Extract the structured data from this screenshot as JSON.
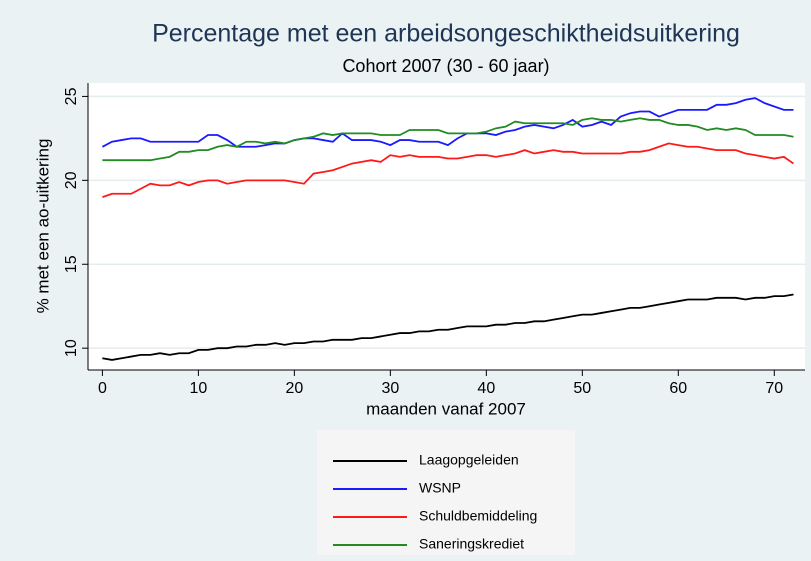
{
  "chart_data": {
    "type": "line",
    "title": "Percentage met een arbeidsongeschiktheidsuitkering",
    "subtitle": "Cohort 2007 (30 - 60 jaar)",
    "x_label": "maanden vanaf 2007",
    "y_label": "% met een ao-uitkering",
    "x": [
      0,
      1,
      2,
      3,
      4,
      5,
      6,
      7,
      8,
      9,
      10,
      11,
      12,
      13,
      14,
      15,
      16,
      17,
      18,
      19,
      20,
      21,
      22,
      23,
      24,
      25,
      26,
      27,
      28,
      29,
      30,
      31,
      32,
      33,
      34,
      35,
      36,
      37,
      38,
      39,
      40,
      41,
      42,
      43,
      44,
      45,
      46,
      47,
      48,
      49,
      50,
      51,
      52,
      53,
      54,
      55,
      56,
      57,
      58,
      59,
      60,
      61,
      62,
      63,
      64,
      65,
      66,
      67,
      68,
      69,
      70,
      71,
      72
    ],
    "series": [
      {
        "name": "Laagopgeleiden",
        "color": "#000000",
        "values": [
          9.4,
          9.3,
          9.4,
          9.5,
          9.6,
          9.6,
          9.7,
          9.6,
          9.7,
          9.7,
          9.9,
          9.9,
          10.0,
          10.0,
          10.1,
          10.1,
          10.2,
          10.2,
          10.3,
          10.2,
          10.3,
          10.3,
          10.4,
          10.4,
          10.5,
          10.5,
          10.5,
          10.6,
          10.6,
          10.7,
          10.8,
          10.9,
          10.9,
          11.0,
          11.0,
          11.1,
          11.1,
          11.2,
          11.3,
          11.3,
          11.3,
          11.4,
          11.4,
          11.5,
          11.5,
          11.6,
          11.6,
          11.7,
          11.8,
          11.9,
          12.0,
          12.0,
          12.1,
          12.2,
          12.3,
          12.4,
          12.4,
          12.5,
          12.6,
          12.7,
          12.8,
          12.9,
          12.9,
          12.9,
          13.0,
          13.0,
          13.0,
          12.9,
          13.0,
          13.0,
          13.1,
          13.1,
          13.2
        ]
      },
      {
        "name": "WSNP",
        "color": "#1a1aff",
        "values": [
          22.0,
          22.3,
          22.4,
          22.5,
          22.5,
          22.3,
          22.3,
          22.3,
          22.3,
          22.3,
          22.3,
          22.7,
          22.7,
          22.4,
          22.0,
          22.0,
          22.0,
          22.1,
          22.2,
          22.2,
          22.4,
          22.5,
          22.5,
          22.4,
          22.3,
          22.8,
          22.4,
          22.4,
          22.4,
          22.3,
          22.1,
          22.4,
          22.4,
          22.3,
          22.3,
          22.3,
          22.1,
          22.5,
          22.8,
          22.8,
          22.8,
          22.7,
          22.9,
          23.0,
          23.2,
          23.3,
          23.2,
          23.1,
          23.3,
          23.6,
          23.2,
          23.3,
          23.5,
          23.3,
          23.8,
          24.0,
          24.1,
          24.1,
          23.8,
          24.0,
          24.2,
          24.2,
          24.2,
          24.2,
          24.5,
          24.5,
          24.6,
          24.8,
          24.9,
          24.6,
          24.4,
          24.2,
          24.2
        ]
      },
      {
        "name": "Schuldbemiddeling",
        "color": "#ff1a1a",
        "values": [
          19.0,
          19.2,
          19.2,
          19.2,
          19.5,
          19.8,
          19.7,
          19.7,
          19.9,
          19.7,
          19.9,
          20.0,
          20.0,
          19.8,
          19.9,
          20.0,
          20.0,
          20.0,
          20.0,
          20.0,
          19.9,
          19.8,
          20.4,
          20.5,
          20.6,
          20.8,
          21.0,
          21.1,
          21.2,
          21.1,
          21.5,
          21.4,
          21.5,
          21.4,
          21.4,
          21.4,
          21.3,
          21.3,
          21.4,
          21.5,
          21.5,
          21.4,
          21.5,
          21.6,
          21.8,
          21.6,
          21.7,
          21.8,
          21.7,
          21.7,
          21.6,
          21.6,
          21.6,
          21.6,
          21.6,
          21.7,
          21.7,
          21.8,
          22.0,
          22.2,
          22.1,
          22.0,
          22.0,
          21.9,
          21.8,
          21.8,
          21.8,
          21.6,
          21.5,
          21.4,
          21.3,
          21.4,
          21.0
        ]
      },
      {
        "name": "Saneringskrediet",
        "color": "#228b22",
        "values": [
          21.2,
          21.2,
          21.2,
          21.2,
          21.2,
          21.2,
          21.3,
          21.4,
          21.7,
          21.7,
          21.8,
          21.8,
          22.0,
          22.1,
          22.0,
          22.3,
          22.3,
          22.2,
          22.3,
          22.2,
          22.4,
          22.5,
          22.6,
          22.8,
          22.7,
          22.8,
          22.8,
          22.8,
          22.8,
          22.7,
          22.7,
          22.7,
          23.0,
          23.0,
          23.0,
          23.0,
          22.8,
          22.8,
          22.8,
          22.8,
          22.9,
          23.1,
          23.2,
          23.5,
          23.4,
          23.4,
          23.4,
          23.4,
          23.4,
          23.3,
          23.6,
          23.7,
          23.6,
          23.6,
          23.5,
          23.6,
          23.7,
          23.6,
          23.6,
          23.4,
          23.3,
          23.3,
          23.2,
          23.0,
          23.1,
          23.0,
          23.1,
          23.0,
          22.7,
          22.7,
          22.7,
          22.7,
          22.6
        ]
      }
    ],
    "xlim": [
      -1.5,
      73.2
    ],
    "ylim": [
      8.7,
      25.8
    ],
    "xticks": [
      0,
      10,
      20,
      30,
      40,
      50,
      60,
      70
    ],
    "yticks": [
      10,
      15,
      20,
      25
    ],
    "grid": true,
    "legend": "bottom"
  }
}
